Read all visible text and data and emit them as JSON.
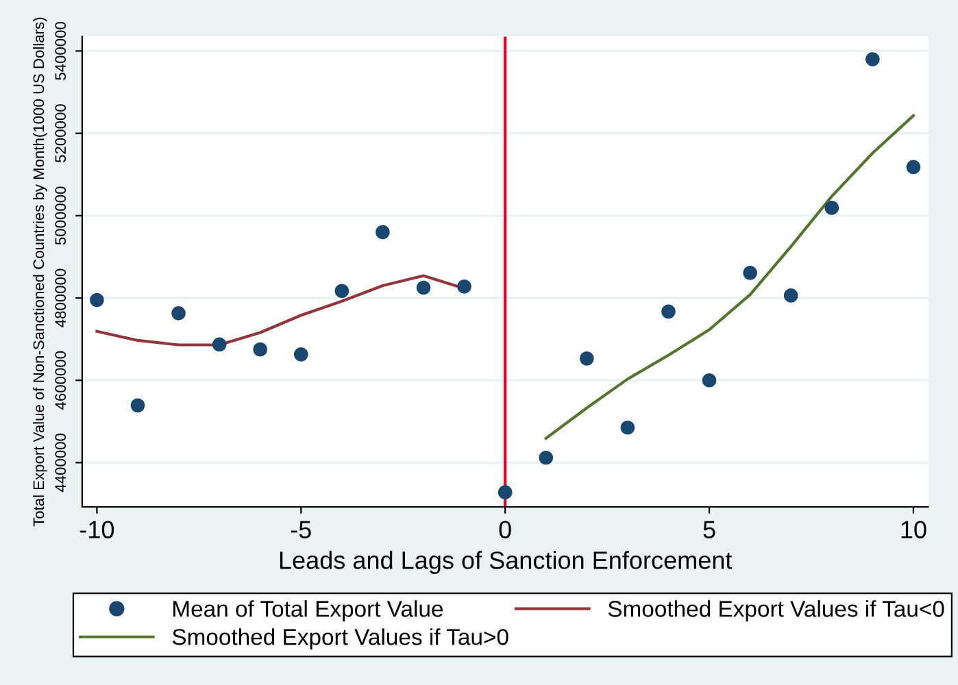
{
  "chart_data": {
    "type": "scatter",
    "xlabel": "Leads and Lags of Sanction Enforcement",
    "ylabel": "Total Export Value of Non-Sanctioned Countries by Month(1000 US Dollars)",
    "series": [
      {
        "name": "Mean of Total Export Value",
        "color": "#1a476f",
        "marker": "circle",
        "x": [
          -10,
          -9,
          -8,
          -7,
          -6,
          -5,
          -4,
          -3,
          -2,
          -1,
          0,
          1,
          2,
          3,
          4,
          5,
          6,
          7,
          8,
          9,
          10
        ],
        "values": [
          4795000,
          4539000,
          4763000,
          4687000,
          4675000,
          4663000,
          4817000,
          4960000,
          4825000,
          4828000,
          4328000,
          4412000,
          4653000,
          4485000,
          4767000,
          4600000,
          4861000,
          4806000,
          5019000,
          5380000,
          5118000
        ]
      },
      {
        "name": "Smoothed Export Values if Tau<0",
        "type": "line",
        "color": "#90353b",
        "x": [
          -10,
          -9,
          -8,
          -7,
          -6,
          -5,
          -4,
          -3,
          -2,
          -1
        ],
        "values": [
          4719000,
          4697000,
          4686000,
          4686000,
          4716000,
          4758000,
          4792000,
          4830000,
          4854000,
          4823000
        ]
      },
      {
        "name": "Smoothed Export Values if Tau>0",
        "type": "line",
        "color": "#55752f",
        "x": [
          1,
          2,
          3,
          4,
          5,
          6,
          7,
          8,
          9,
          10
        ],
        "values": [
          4459000,
          4533000,
          4603000,
          4661000,
          4723000,
          4808000,
          4925000,
          5047000,
          5152000,
          5243000
        ]
      }
    ],
    "ref_lines": [
      {
        "axis": "x",
        "value": 0,
        "color": "#e8002a"
      }
    ],
    "xlim": [
      -10.36,
      10.36
    ],
    "xticks": [
      -10,
      -5,
      0,
      5,
      10
    ],
    "ylim": [
      4292500,
      5435000
    ],
    "yticks": [
      4400000,
      4600000,
      4800000,
      5000000,
      5200000,
      5400000
    ],
    "grid": "y",
    "legend": "bottom"
  }
}
